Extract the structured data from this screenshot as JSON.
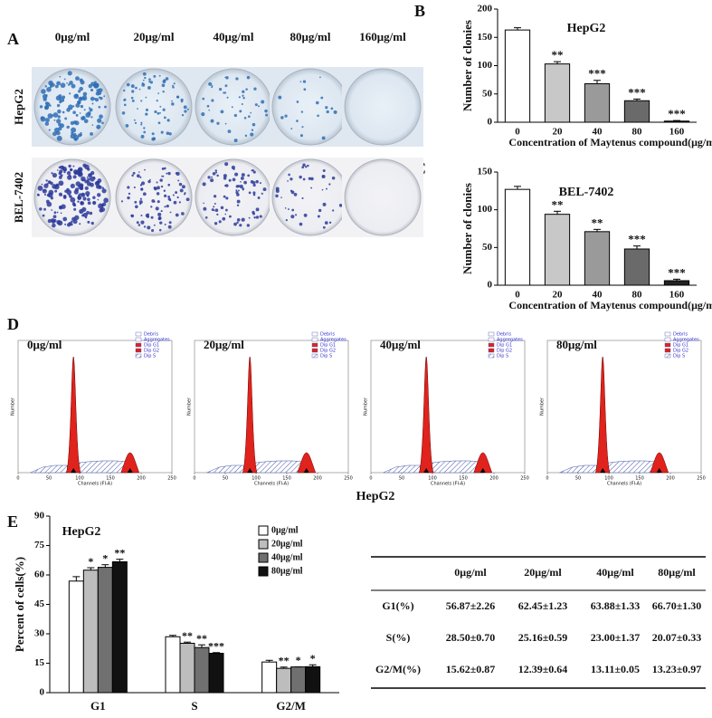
{
  "panel_a": {
    "label": "A",
    "columns": [
      "0μg/ml",
      "20μg/ml",
      "40μg/ml",
      "80μg/ml",
      "160μg/ml"
    ],
    "rows": [
      "HepG2",
      "BEL-7402"
    ]
  },
  "chart_data": [
    {
      "type": "bar",
      "panel": "B",
      "title": "HepG2",
      "x_label": "Concentration of Maytenus compound(μg/ml)",
      "y_label": "Number of clonies",
      "categories": [
        "0",
        "20",
        "40",
        "80",
        "160"
      ],
      "values": [
        163,
        103,
        68,
        38,
        2
      ],
      "errors": [
        4,
        4,
        6,
        3,
        1
      ],
      "annotations": [
        null,
        "**",
        "***",
        "***",
        "***"
      ],
      "colors": [
        "#ffffff",
        "#c8c8c8",
        "#9a9a9a",
        "#6a6a6a",
        "#222222"
      ],
      "ylim": [
        0,
        200
      ],
      "yticks": [
        0,
        50,
        100,
        150,
        200
      ]
    },
    {
      "type": "bar",
      "panel": "C",
      "title": "BEL-7402",
      "x_label": "Concentration of Maytenus compound(μg/ml)",
      "y_label": "Number of clonies",
      "categories": [
        "0",
        "20",
        "40",
        "80",
        "160"
      ],
      "values": [
        127,
        94,
        71,
        48,
        6
      ],
      "errors": [
        4,
        4,
        3,
        4,
        2
      ],
      "annotations": [
        null,
        "**",
        "**",
        "***",
        "***"
      ],
      "colors": [
        "#ffffff",
        "#c8c8c8",
        "#9a9a9a",
        "#6a6a6a",
        "#222222"
      ],
      "ylim": [
        0,
        150
      ],
      "yticks": [
        0,
        50,
        100,
        150
      ]
    },
    {
      "type": "grouped_bar",
      "panel": "E",
      "title": "HepG2",
      "y_label": "Percent of cells(%)",
      "categories": [
        "G1",
        "S",
        "G2/M"
      ],
      "series": [
        {
          "name": "0μg/ml",
          "color": "#ffffff",
          "values": [
            56.87,
            28.5,
            15.62
          ],
          "errors": [
            2.26,
            0.7,
            0.87
          ],
          "annotations": [
            null,
            null,
            null
          ]
        },
        {
          "name": "20μg/ml",
          "color": "#bdbdbd",
          "values": [
            62.45,
            25.16,
            12.39
          ],
          "errors": [
            1.23,
            0.59,
            0.64
          ],
          "annotations": [
            "*",
            "**",
            "**"
          ]
        },
        {
          "name": "40μg/ml",
          "color": "#707070",
          "values": [
            63.88,
            23.0,
            13.11
          ],
          "errors": [
            1.33,
            1.37,
            0.05
          ],
          "annotations": [
            "*",
            "**",
            "*"
          ]
        },
        {
          "name": "80μg/ml",
          "color": "#111111",
          "values": [
            66.7,
            20.07,
            13.23
          ],
          "errors": [
            1.3,
            0.33,
            0.97
          ],
          "annotations": [
            "**",
            "***",
            "*"
          ]
        }
      ],
      "ylim": [
        0,
        90
      ],
      "yticks": [
        0,
        15,
        30,
        45,
        60,
        75,
        90
      ]
    }
  ],
  "panel_d": {
    "label": "D",
    "caption": "HepG2",
    "x_label": "Channels (FI-A)",
    "y_label": "Number",
    "legend": [
      "Debris",
      "Aggregates",
      "Dip G1",
      "Dip G2",
      "Dip S"
    ],
    "xlim": [
      0,
      250
    ],
    "xticks": [
      0,
      50,
      100,
      150,
      200,
      250
    ],
    "plots": [
      {
        "title": "0μg/ml"
      },
      {
        "title": "20μg/ml"
      },
      {
        "title": "40μg/ml"
      },
      {
        "title": "80μg/ml"
      }
    ]
  },
  "table": {
    "header": [
      "0μg/ml",
      "20μg/ml",
      "40μg/ml",
      "80μg/ml"
    ],
    "rows": [
      [
        "G1(%)",
        "56.87±2.26",
        "62.45±1.23",
        "63.88±1.33",
        "66.70±1.30"
      ],
      [
        "S(%)",
        "28.50±0.70",
        "25.16±0.59",
        "23.00±1.37",
        "20.07±0.33"
      ],
      [
        "G2/M(%)",
        "15.62±0.87",
        "12.39±0.64",
        "13.11±0.05",
        "13.23±0.97"
      ]
    ]
  }
}
